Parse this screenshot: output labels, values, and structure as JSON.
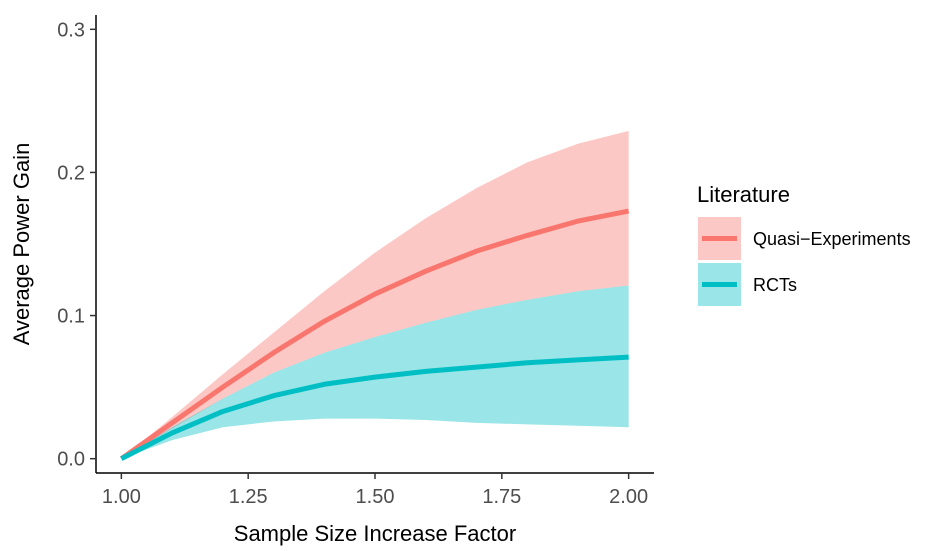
{
  "chart_data": {
    "type": "line",
    "xlabel": "Sample Size Increase Factor",
    "ylabel": "Average Power Gain",
    "xlim": [
      0.95,
      2.05
    ],
    "ylim": [
      -0.01,
      0.31
    ],
    "x_ticks": [
      1.0,
      1.25,
      1.5,
      1.75,
      2.0
    ],
    "x_tick_labels": [
      "1.00",
      "1.25",
      "1.50",
      "1.75",
      "2.00"
    ],
    "y_ticks": [
      0.0,
      0.1,
      0.2,
      0.3
    ],
    "y_tick_labels": [
      "0.0",
      "0.1",
      "0.2",
      "0.3"
    ],
    "grid": false,
    "legend": {
      "title": "Literature",
      "placement": "right"
    },
    "x": [
      1.0,
      1.1,
      1.2,
      1.3,
      1.4,
      1.5,
      1.6,
      1.7,
      1.8,
      1.9,
      2.0
    ],
    "series": [
      {
        "name": "Quasi−Experiments",
        "color": "#F8766D",
        "ribbon_color": "#F8766D",
        "values": [
          0.0,
          0.025,
          0.05,
          0.074,
          0.096,
          0.115,
          0.131,
          0.145,
          0.156,
          0.166,
          0.173
        ],
        "lower": [
          0.0,
          0.021,
          0.042,
          0.06,
          0.074,
          0.085,
          0.095,
          0.104,
          0.111,
          0.117,
          0.121
        ],
        "upper": [
          0.0,
          0.029,
          0.059,
          0.088,
          0.117,
          0.144,
          0.168,
          0.189,
          0.207,
          0.22,
          0.229
        ]
      },
      {
        "name": "RCTs",
        "color": "#00BFC4",
        "ribbon_color": "#00BFC4",
        "values": [
          0.0,
          0.018,
          0.033,
          0.044,
          0.052,
          0.057,
          0.061,
          0.064,
          0.067,
          0.069,
          0.071
        ],
        "lower": [
          0.0,
          0.013,
          0.022,
          0.026,
          0.028,
          0.028,
          0.027,
          0.025,
          0.024,
          0.023,
          0.022
        ],
        "upper": [
          0.0,
          0.022,
          0.042,
          0.06,
          0.074,
          0.085,
          0.095,
          0.104,
          0.111,
          0.117,
          0.121
        ]
      }
    ]
  }
}
